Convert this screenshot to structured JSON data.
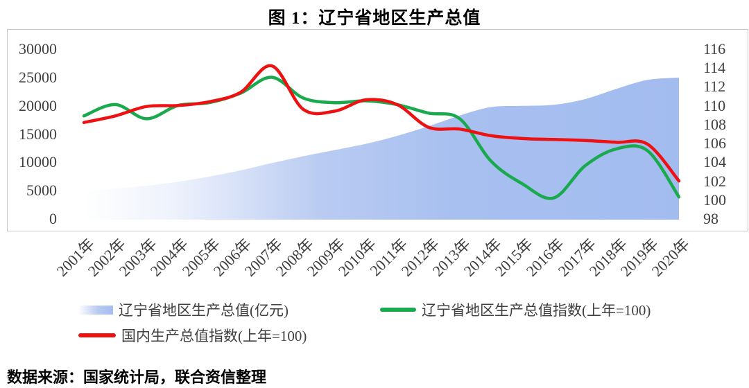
{
  "title": "图 1：辽宁省地区生产总值",
  "source_note": "数据来源：国家统计局，联合资信整理",
  "colors": {
    "area_fill_solid": "#a3bcf0",
    "area_fill_fade": "#ffffff",
    "liaoning_index_line": "#1aaa4e",
    "national_index_line": "#ee1111",
    "frame_border": "#c8c8c8",
    "tick_text": "#3f3f3f"
  },
  "chart_data": {
    "type": "combo",
    "subtypes": [
      "area",
      "line",
      "line"
    ],
    "categories": [
      "2001年",
      "2002年",
      "2003年",
      "2004年",
      "2005年",
      "2006年",
      "2007年",
      "2008年",
      "2009年",
      "2010年",
      "2011年",
      "2012年",
      "2013年",
      "2014年",
      "2015年",
      "2016年",
      "2017年",
      "2018年",
      "2019年",
      "2020年"
    ],
    "series": [
      {
        "name": "辽宁省地区生产总值(亿元)",
        "type": "area",
        "y_axis": "left",
        "color": "#a3bcf0",
        "values": [
          5000,
          5500,
          6000,
          6700,
          7600,
          8700,
          10000,
          11200,
          12300,
          13400,
          14800,
          16500,
          18400,
          19900,
          20100,
          20300,
          21300,
          23100,
          24700,
          25100
        ]
      },
      {
        "name": "辽宁省地区生产总值指数(上年=100)",
        "type": "line",
        "y_axis": "right",
        "color": "#1aaa4e",
        "values": [
          109.0,
          110.2,
          108.7,
          110.1,
          110.4,
          111.4,
          113.1,
          110.9,
          110.4,
          110.6,
          110.2,
          109.3,
          108.7,
          104.2,
          101.8,
          100.3,
          103.7,
          105.5,
          105.3,
          100.4
        ]
      },
      {
        "name": "国内生产总值指数(上年=100)",
        "type": "line",
        "y_axis": "right",
        "color": "#ee1111",
        "values": [
          108.3,
          109.0,
          110.0,
          110.1,
          110.5,
          111.5,
          114.3,
          109.7,
          109.5,
          110.7,
          110.2,
          107.8,
          107.6,
          106.9,
          106.6,
          106.5,
          106.4,
          106.2,
          106.0,
          102.1
        ]
      }
    ],
    "title": "图 1：辽宁省地区生产总值",
    "xlabel": "",
    "ylabel": "",
    "left_axis": {
      "ticks": [
        30000,
        25000,
        20000,
        15000,
        10000,
        5000,
        0
      ],
      "range": [
        0,
        30000
      ]
    },
    "right_axis": {
      "ticks": [
        116,
        114,
        112,
        110,
        108,
        106,
        104,
        102,
        100,
        98
      ],
      "range": [
        98,
        116
      ]
    },
    "grid": false,
    "smoothed_lines": true,
    "legend_position": "bottom"
  }
}
